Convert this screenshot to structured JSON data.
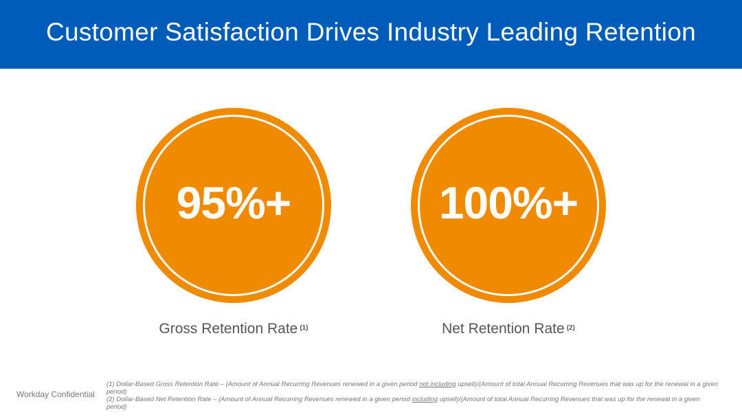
{
  "header": {
    "title": "Customer Satisfaction Drives Industry Leading Retention",
    "background_color": "#005cb9"
  },
  "metrics": [
    {
      "value": "95%+",
      "label": "Gross Retention Rate",
      "note_ref": "(1)",
      "color": "#f08a00"
    },
    {
      "value": "100%+",
      "label": "Net Retention Rate",
      "note_ref": "(2)",
      "color": "#f08a00"
    }
  ],
  "footer": {
    "confidential": "Workday Confidential",
    "notes": [
      {
        "prefix": "(1) Dollar-Based Gross Retention Rate – (Amount of Annual Recurring Revenues renewed in a given period",
        "emphasis": "not including",
        "suffix": "upsell)/(Amount of total Annual Recurring Revenues that was up for the renewal in a given period)"
      },
      {
        "prefix": "(2) Dollar-Based Net Retention Rate – (Amount of Annual Recurring Revenues renewed in a given period",
        "emphasis": "including",
        "suffix": "upsell)/(Amount of total Annual Recurring Revenues that was up for the renewal in a given period)"
      }
    ]
  }
}
